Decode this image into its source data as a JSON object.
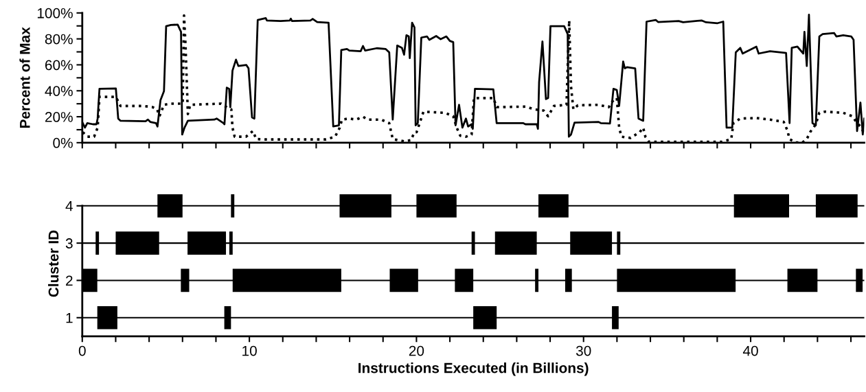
{
  "chart_data": [
    {
      "type": "line",
      "ylabel": "Percent of Max",
      "marker": "none",
      "grid": false,
      "tick_labels": "y",
      "xlim": [
        0,
        46.8
      ],
      "ylim": [
        0,
        100
      ],
      "xticks": [
        {
          "value": 0,
          "label": null
        },
        {
          "value": 2,
          "label": null
        },
        {
          "value": 4,
          "label": null
        },
        {
          "value": 6,
          "label": null
        },
        {
          "value": 8,
          "label": null
        },
        {
          "value": 10,
          "label": null
        },
        {
          "value": 12,
          "label": null
        },
        {
          "value": 14,
          "label": null
        },
        {
          "value": 16,
          "label": null
        },
        {
          "value": 18,
          "label": null
        },
        {
          "value": 20,
          "label": null
        },
        {
          "value": 22,
          "label": null
        },
        {
          "value": 24,
          "label": null
        },
        {
          "value": 26,
          "label": null
        },
        {
          "value": 28,
          "label": null
        },
        {
          "value": 30,
          "label": null
        },
        {
          "value": 32,
          "label": null
        },
        {
          "value": 34,
          "label": null
        },
        {
          "value": 36,
          "label": null
        },
        {
          "value": 38,
          "label": null
        },
        {
          "value": 40,
          "label": null
        },
        {
          "value": 42,
          "label": null
        },
        {
          "value": 44,
          "label": null
        },
        {
          "value": 46,
          "label": null
        }
      ],
      "yticks": [
        {
          "value": 0,
          "label": "0%"
        },
        {
          "value": 10,
          "label": null
        },
        {
          "value": 20,
          "label": "20%"
        },
        {
          "value": 30,
          "label": null
        },
        {
          "value": 40,
          "label": "40%"
        },
        {
          "value": 50,
          "label": null
        },
        {
          "value": 60,
          "label": "60%"
        },
        {
          "value": 70,
          "label": null
        },
        {
          "value": 80,
          "label": "80%"
        },
        {
          "value": 90,
          "label": null
        },
        {
          "value": 100,
          "label": "100%"
        }
      ],
      "series": [
        {
          "color": "#000000",
          "line_style": "solid",
          "x": [
            0.03,
            0.16,
            0.3,
            0.64,
            0.85,
            0.92,
            1.03,
            2.01,
            2.15,
            2.29,
            3.79,
            3.93,
            4.07,
            4.41,
            4.5,
            4.68,
            4.89,
            5.02,
            5.3,
            5.71,
            5.91,
            5.98,
            6.12,
            6.32,
            7.9,
            8.04,
            8.45,
            8.51,
            8.65,
            8.79,
            8.86,
            8.99,
            9.2,
            9.34,
            9.82,
            9.95,
            10.16,
            10.3,
            10.5,
            10.98,
            11.05,
            11.87,
            12.42,
            12.48,
            12.55,
            13.65,
            13.79,
            14.06,
            14.74,
            15.02,
            15.36,
            15.5,
            15.84,
            15.98,
            16.66,
            16.8,
            16.93,
            17.62,
            18.16,
            18.37,
            18.58,
            18.85,
            19.13,
            19.26,
            19.4,
            19.54,
            19.6,
            19.74,
            19.88,
            19.95,
            20.08,
            20.29,
            20.63,
            20.77,
            21.18,
            21.45,
            21.79,
            22.0,
            22.2,
            22.34,
            22.55,
            22.75,
            22.96,
            23.09,
            23.3,
            23.37,
            23.5,
            24.6,
            24.8,
            26.38,
            26.52,
            27.2,
            27.27,
            27.34,
            27.54,
            27.75,
            27.88,
            28.02,
            28.84,
            29.05,
            29.12,
            29.25,
            29.46,
            30.9,
            31.03,
            31.58,
            31.79,
            31.99,
            32.13,
            32.37,
            32.47,
            32.61,
            33.09,
            33.29,
            33.57,
            33.77,
            34.32,
            34.46,
            35.69,
            35.96,
            37.06,
            37.33,
            38.02,
            38.36,
            38.56,
            38.9,
            39.11,
            39.38,
            39.52,
            40.34,
            40.48,
            41.16,
            42.12,
            42.33,
            42.46,
            42.8,
            43.15,
            43.22,
            43.36,
            43.49,
            43.7,
            43.9,
            44.11,
            44.31,
            45.0,
            45.13,
            45.54,
            46.02,
            46.16,
            46.37,
            46.57,
            46.71,
            46.8
          ],
          "values": [
            15.1,
            11.6,
            15.1,
            14.2,
            14.2,
            18.6,
            41.5,
            41.8,
            18.6,
            16.9,
            16.5,
            17.8,
            16.0,
            15.1,
            12.5,
            32.7,
            39.7,
            89.8,
            90.7,
            91.0,
            85.4,
            6.3,
            11.6,
            16.9,
            17.8,
            18.6,
            15.1,
            14.2,
            42.4,
            41.5,
            27.4,
            55.5,
            64.0,
            59.1,
            59.9,
            57.3,
            19.5,
            18.6,
            94.6,
            96.0,
            94.2,
            93.8,
            94.2,
            95.6,
            93.8,
            94.2,
            95.4,
            93.0,
            92.4,
            12.5,
            13.4,
            71.4,
            72.2,
            71.0,
            70.5,
            74.5,
            71.0,
            72.8,
            72.2,
            69.6,
            17.8,
            74.9,
            73.1,
            67.8,
            82.8,
            81.9,
            65.2,
            92.4,
            88.9,
            13.4,
            15.1,
            81.0,
            81.9,
            79.3,
            82.2,
            79.8,
            81.9,
            78.4,
            77.5,
            13.4,
            29.2,
            11.6,
            18.6,
            12.5,
            14.2,
            10.7,
            41.5,
            41.1,
            15.1,
            15.1,
            14.2,
            14.2,
            10.7,
            46.7,
            78.0,
            33.6,
            34.4,
            89.8,
            89.8,
            83.7,
            4.6,
            6.3,
            15.5,
            16.0,
            15.1,
            14.8,
            41.5,
            40.6,
            28.3,
            62.6,
            57.3,
            58.2,
            57.3,
            18.6,
            16.9,
            93.3,
            94.6,
            93.0,
            93.8,
            92.8,
            94.2,
            92.8,
            92.1,
            93.3,
            11.6,
            11.6,
            69.6,
            73.1,
            68.7,
            74.0,
            68.7,
            70.5,
            69.2,
            15.1,
            73.1,
            74.0,
            68.7,
            85.4,
            59.1,
            98.6,
            15.1,
            13.4,
            81.9,
            83.7,
            84.5,
            81.9,
            82.8,
            81.9,
            79.3,
            9.0,
            30.9,
            6.3,
            18.6
          ]
        },
        {
          "color": "#000000",
          "line_style": "dotted",
          "x": [
            0.03,
            0.3,
            0.71,
            0.92,
            1.03,
            2.01,
            2.29,
            3.66,
            4.21,
            4.48,
            4.62,
            4.89,
            5.3,
            6.01,
            6.09,
            6.18,
            6.32,
            6.46,
            8.31,
            8.51,
            8.92,
            8.99,
            9.12,
            9.8,
            10.21,
            10.41,
            10.89,
            14.59,
            15.13,
            15.41,
            15.54,
            15.96,
            16.39,
            16.8,
            17.07,
            17.89,
            18.37,
            18.58,
            19.26,
            19.67,
            19.88,
            20.01,
            20.42,
            21.72,
            22.2,
            22.41,
            22.62,
            22.96,
            23.3,
            23.44,
            24.6,
            24.8,
            26.52,
            27.06,
            27.61,
            27.88,
            28.23,
            28.98,
            29.14,
            29.25,
            29.39,
            29.66,
            30.9,
            31.51,
            31.72,
            31.99,
            32.13,
            32.27,
            32.81,
            33.36,
            33.57,
            33.7,
            33.91,
            38.29,
            38.84,
            38.97,
            39.38,
            40.34,
            41.16,
            41.98,
            42.19,
            42.33,
            42.67,
            43.08,
            43.36,
            43.56,
            43.9,
            44.11,
            44.45,
            45.54,
            46.09,
            46.37,
            46.64,
            46.8
          ],
          "values": [
            8.1,
            4.6,
            4.6,
            11.6,
            35.3,
            35.3,
            28.3,
            28.3,
            27.4,
            25.7,
            20.4,
            29.2,
            30.1,
            30.1,
            98.1,
            74.9,
            22.1,
            29.2,
            30.1,
            28.3,
            25.7,
            11.6,
            4.6,
            4.6,
            9.0,
            2.8,
            2.5,
            2.5,
            4.6,
            11.6,
            17.8,
            18.6,
            17.8,
            20.0,
            17.8,
            17.8,
            15.1,
            2.8,
            1.1,
            1.9,
            8.1,
            8.1,
            23.9,
            23.0,
            20.4,
            11.6,
            5.4,
            4.6,
            6.3,
            34.4,
            34.4,
            27.4,
            27.8,
            25.7,
            24.8,
            20.4,
            28.3,
            29.2,
            94.2,
            43.2,
            25.7,
            28.8,
            29.2,
            27.4,
            31.8,
            34.4,
            11.6,
            4.6,
            3.7,
            8.1,
            11.6,
            4.6,
            0.7,
            0.7,
            2.8,
            15.1,
            18.6,
            19.0,
            17.8,
            16.0,
            9.8,
            2.8,
            0.2,
            0.0,
            2.8,
            8.1,
            14.2,
            23.0,
            23.9,
            23.0,
            20.4,
            15.1,
            11.6,
            6.3
          ]
        }
      ]
    },
    {
      "type": "bar",
      "orientation": "horizontal",
      "xlabel": "Instructions Executed (in Billions)",
      "ylabel": "Cluster ID",
      "grid": "y",
      "categories": [
        "4",
        "3",
        "2",
        "1"
      ],
      "xlim": [
        0,
        46.8
      ],
      "xticks": [
        0,
        {
          "value": 2,
          "label": null
        },
        {
          "value": 4,
          "label": null
        },
        {
          "value": 6,
          "label": null
        },
        {
          "value": 8,
          "label": null
        },
        10,
        {
          "value": 12,
          "label": null
        },
        {
          "value": 14,
          "label": null
        },
        {
          "value": 16,
          "label": null
        },
        {
          "value": 18,
          "label": null
        },
        20,
        {
          "value": 22,
          "label": null
        },
        {
          "value": 24,
          "label": null
        },
        {
          "value": 26,
          "label": null
        },
        {
          "value": 28,
          "label": null
        },
        30,
        {
          "value": 32,
          "label": null
        },
        {
          "value": 34,
          "label": null
        },
        {
          "value": 36,
          "label": null
        },
        {
          "value": 38,
          "label": null
        },
        40,
        {
          "value": 42,
          "label": null
        },
        {
          "value": 44,
          "label": null
        },
        {
          "value": 46,
          "label": null
        }
      ],
      "series": [
        {
          "color": "#000000",
          "base": [
            4.5,
            0.8,
            0.0,
            0.9
          ],
          "values": [
            1.5,
            0.2,
            0.9,
            1.2
          ]
        },
        {
          "color": "#000000",
          "base": [
            8.9,
            2.0,
            5.9,
            8.5
          ],
          "values": [
            0.2,
            2.6,
            0.5,
            0.4
          ]
        },
        {
          "color": "#000000",
          "base": [
            15.4,
            6.3,
            9.0,
            23.4
          ],
          "values": [
            3.1,
            2.3,
            6.5,
            1.4
          ]
        },
        {
          "color": "#000000",
          "base": [
            20.0,
            8.8,
            18.4,
            31.7
          ],
          "values": [
            2.4,
            0.2,
            1.7,
            0.4
          ]
        },
        {
          "color": "#000000",
          "base": [
            27.3,
            23.3,
            22.3,
            null
          ],
          "values": [
            1.8,
            0.2,
            1.1,
            null
          ]
        },
        {
          "color": "#000000",
          "base": [
            39.0,
            24.7,
            27.1,
            null
          ],
          "values": [
            3.3,
            2.5,
            0.2,
            null
          ]
        },
        {
          "color": "#000000",
          "base": [
            43.9,
            29.2,
            28.9,
            null
          ],
          "values": [
            2.5,
            2.5,
            0.4,
            null
          ]
        },
        {
          "color": "#000000",
          "base": [
            null,
            32.0,
            32.0,
            null
          ],
          "values": [
            null,
            0.2,
            7.1,
            null
          ]
        },
        {
          "color": "#000000",
          "base": [
            null,
            null,
            42.2,
            null
          ],
          "values": [
            null,
            null,
            1.8,
            null
          ]
        },
        {
          "color": "#000000",
          "base": [
            null,
            null,
            46.3,
            null
          ],
          "values": [
            null,
            null,
            0.4,
            null
          ]
        }
      ]
    }
  ]
}
